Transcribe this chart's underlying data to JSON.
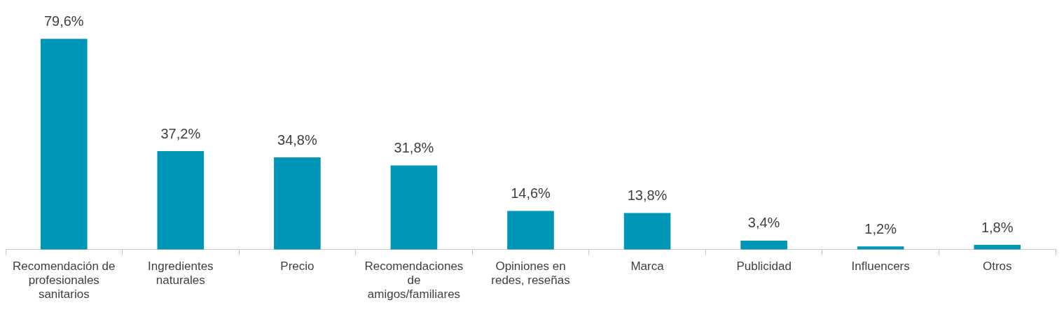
{
  "chart_data": {
    "type": "bar",
    "categories": [
      "Recomendación de profesionales sanitarios",
      "Ingredientes naturales",
      "Precio",
      "Recomendaciones de amigos/familiares",
      "Opiniones en redes, reseñas",
      "Marca",
      "Publicidad",
      "Influencers",
      "Otros"
    ],
    "values": [
      79.6,
      37.2,
      34.8,
      31.8,
      14.6,
      13.8,
      3.4,
      1.2,
      1.8
    ],
    "value_labels": [
      "79,6%",
      "37,2%",
      "34,8%",
      "31,8%",
      "14,6%",
      "13,8%",
      "3,4%",
      "1,2%",
      "1,8%"
    ],
    "color": "#0096b7",
    "grid": false,
    "legend": false,
    "tick_labels": "x"
  }
}
